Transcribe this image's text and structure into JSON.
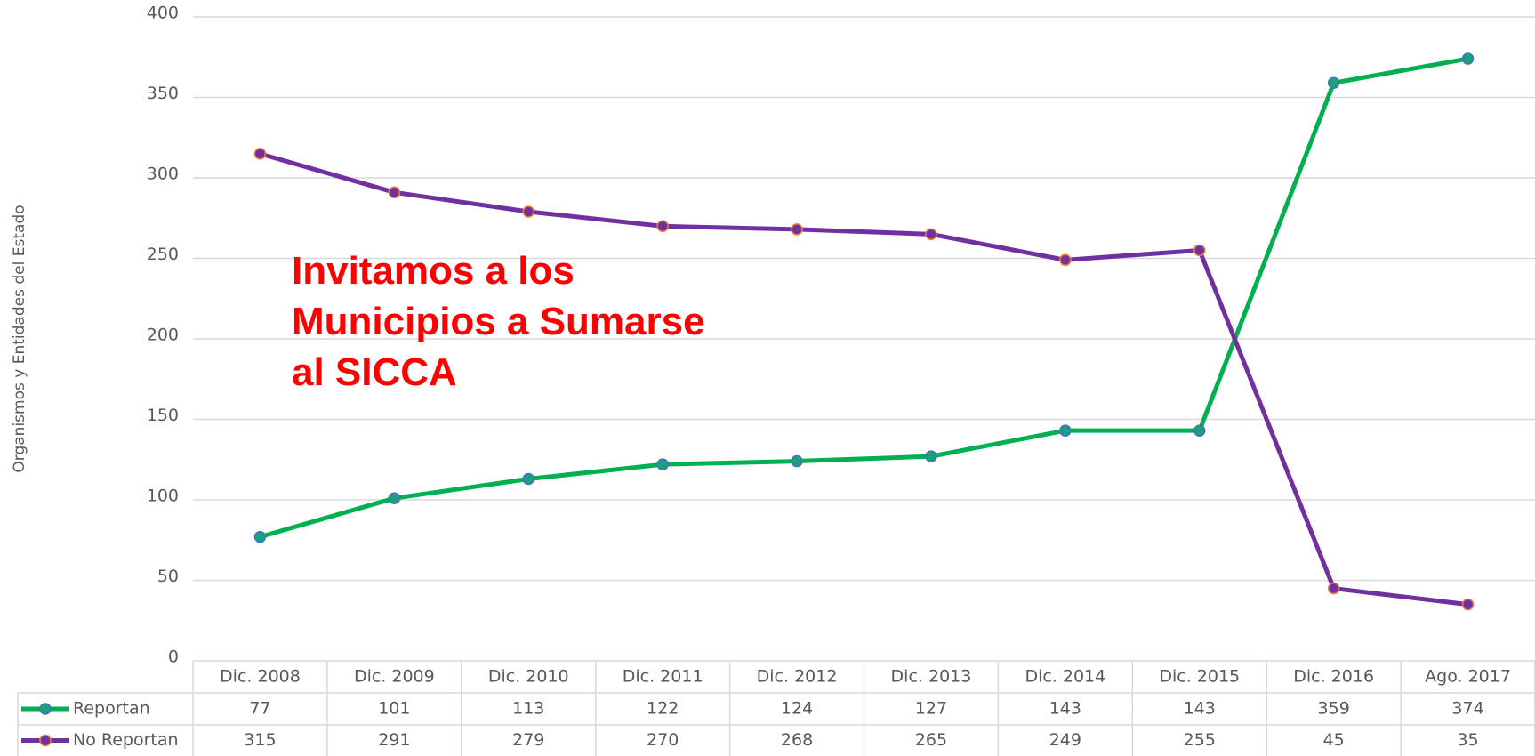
{
  "chart_data": {
    "type": "line",
    "y_label": "Organismos y Entidades del Estado",
    "annotation": [
      "Invitamos a los",
      "Municipios a Sumarse",
      "al SICCA"
    ],
    "categories": [
      "Dic. 2008",
      "Dic. 2009",
      "Dic. 2010",
      "Dic. 2011",
      "Dic. 2012",
      "Dic. 2013",
      "Dic. 2014",
      "Dic. 2015",
      "Dic. 2016",
      "Ago. 2017"
    ],
    "series": [
      {
        "name": "Reportan",
        "color": "#00b050",
        "marker_fill": "#1aa07a",
        "marker_edge": "#4472c4",
        "values": [
          77,
          101,
          113,
          122,
          124,
          127,
          143,
          143,
          359,
          374
        ]
      },
      {
        "name": "No Reportan",
        "color": "#7030a0",
        "marker_fill": "#7030a0",
        "marker_edge": "#ed7d31",
        "values": [
          315,
          291,
          279,
          270,
          268,
          265,
          249,
          255,
          45,
          35
        ]
      }
    ],
    "ylim": [
      0,
      400
    ],
    "yticks": [
      0,
      50,
      100,
      150,
      200,
      250,
      300,
      350,
      400
    ],
    "grid": true
  }
}
